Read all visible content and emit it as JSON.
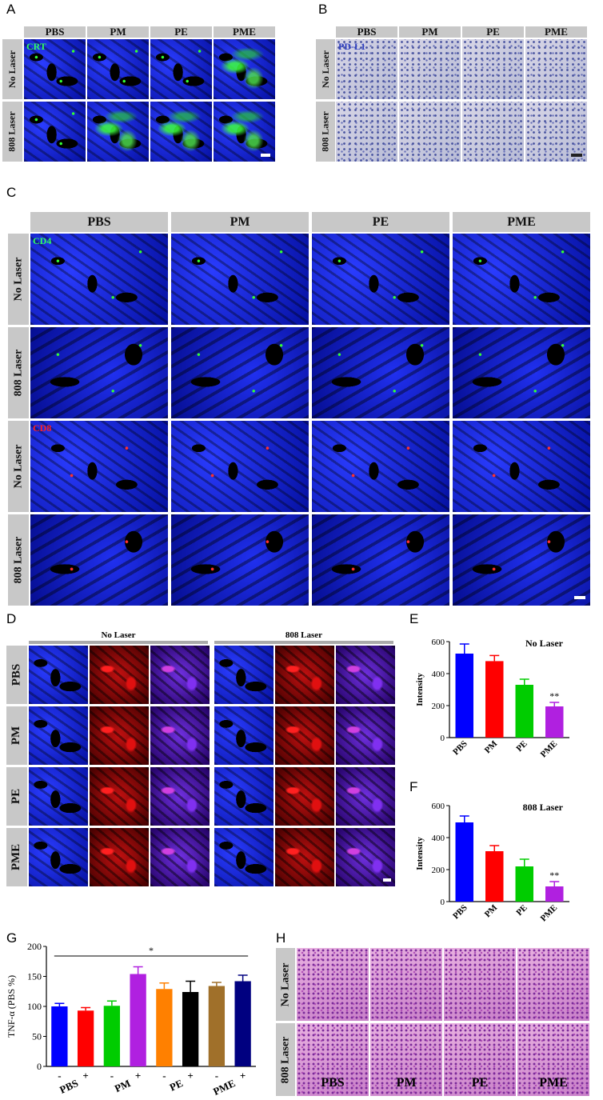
{
  "panels": {
    "A": {
      "label": "A",
      "columns": [
        "PBS",
        "PM",
        "PE",
        "PME"
      ],
      "rows": [
        "No Laser",
        "808 Laser"
      ],
      "stain": "CRT"
    },
    "B": {
      "label": "B",
      "columns": [
        "PBS",
        "PM",
        "PE",
        "PME"
      ],
      "rows": [
        "No Laser",
        "808 Laser"
      ],
      "stain": "PD-L1"
    },
    "C": {
      "label": "C",
      "columns": [
        "PBS",
        "PM",
        "PE",
        "PME"
      ],
      "rows": [
        "No Laser",
        "808 Laser",
        "No Laser",
        "808 Laser"
      ],
      "stain_top": "CD4",
      "stain_bottom": "CD8"
    },
    "D": {
      "label": "D",
      "groups": [
        "No Laser",
        "808 Laser"
      ],
      "rows": [
        "PBS",
        "PM",
        "PE",
        "PME"
      ]
    },
    "E": {
      "label": "E"
    },
    "F": {
      "label": "F"
    },
    "G": {
      "label": "G"
    },
    "H": {
      "label": "H",
      "columns": [
        "PBS",
        "PM",
        "PE",
        "PME"
      ],
      "rows": [
        "No Laser",
        "808 Laser"
      ]
    }
  },
  "chart_data": [
    {
      "id": "E",
      "type": "bar",
      "title": "No Laser",
      "ylabel": "Intensity",
      "categories": [
        "PBS",
        "PM",
        "PE",
        "PME"
      ],
      "values": [
        525,
        478,
        330,
        195
      ],
      "errors": [
        60,
        35,
        35,
        25
      ],
      "colors": [
        "#0000ff",
        "#ff0000",
        "#00cc00",
        "#b020e0"
      ],
      "ylim": [
        0,
        600
      ],
      "yticks": [
        0,
        200,
        400,
        600
      ],
      "annotations": [
        {
          "category": "PME",
          "text": "**"
        }
      ]
    },
    {
      "id": "F",
      "type": "bar",
      "title": "808 Laser",
      "ylabel": "Intensity",
      "categories": [
        "PBS",
        "PM",
        "PE",
        "PME"
      ],
      "values": [
        495,
        315,
        220,
        95
      ],
      "errors": [
        40,
        35,
        45,
        30
      ],
      "colors": [
        "#0000ff",
        "#ff0000",
        "#00cc00",
        "#b020e0"
      ],
      "ylim": [
        0,
        600
      ],
      "yticks": [
        0,
        200,
        400,
        600
      ],
      "annotations": [
        {
          "category": "PME",
          "text": "**"
        }
      ]
    },
    {
      "id": "G",
      "type": "bar",
      "ylabel": "TNF-α (PBS %)",
      "bar_labels": [
        "-",
        "+",
        "-",
        "+",
        "-",
        "+",
        "-",
        "+"
      ],
      "group_labels": [
        "PBS",
        "PM",
        "PE",
        "PME"
      ],
      "values": [
        100,
        93,
        101,
        154,
        129,
        124,
        134,
        142
      ],
      "errors": [
        5,
        5,
        8,
        12,
        10,
        18,
        6,
        10
      ],
      "colors": [
        "#0000ff",
        "#ff0000",
        "#00cc00",
        "#b020e0",
        "#ff8000",
        "#000000",
        "#a0702a",
        "#000080"
      ],
      "ylim": [
        0,
        200
      ],
      "yticks": [
        0,
        50,
        100,
        150,
        200
      ],
      "significance": "*"
    }
  ]
}
